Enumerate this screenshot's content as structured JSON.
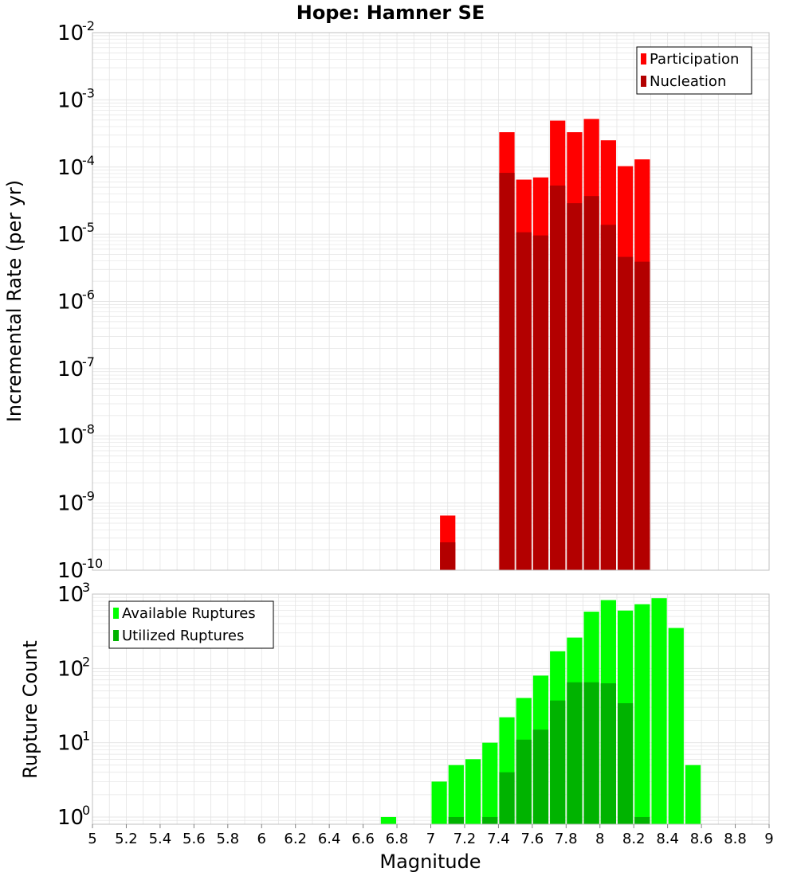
{
  "chart_data": [
    {
      "type": "bar",
      "title": "Hope: Hamner SE",
      "xlabel": "",
      "ylabel": "Incremental Rate (per yr)",
      "xlim": [
        5,
        9
      ],
      "ylim": [
        1e-10,
        0.01
      ],
      "yscale": "log",
      "grid": true,
      "legend_position": "top-right",
      "bin_width": 0.1,
      "x": [
        7.1,
        7.45,
        7.55,
        7.65,
        7.75,
        7.85,
        7.95,
        8.05,
        8.15,
        8.25
      ],
      "series": [
        {
          "name": "Participation",
          "color": "#ff0000",
          "values": [
            6.5e-10,
            0.00033,
            6.5e-05,
            7e-05,
            0.00049,
            0.00033,
            0.00052,
            0.00025,
            0.000103,
            0.00013
          ]
        },
        {
          "name": "Nucleation",
          "color": "#b30000",
          "values": [
            2.6e-10,
            8.2e-05,
            1.07e-05,
            9.6e-06,
            5.3e-05,
            2.9e-05,
            3.7e-05,
            1.38e-05,
            4.6e-06,
            3.9e-06
          ]
        }
      ]
    },
    {
      "type": "bar",
      "title": "",
      "xlabel": "Magnitude",
      "ylabel": "Rupture Count",
      "xlim": [
        5,
        9
      ],
      "ylim": [
        0.8,
        1000
      ],
      "yscale": "log",
      "grid": true,
      "legend_position": "top-left",
      "bin_width": 0.1,
      "x": [
        6.75,
        7.05,
        7.15,
        7.25,
        7.35,
        7.45,
        7.55,
        7.65,
        7.75,
        7.85,
        7.95,
        8.05,
        8.15,
        8.25,
        8.35,
        8.45,
        8.55
      ],
      "series": [
        {
          "name": "Available Ruptures",
          "color": "#00ff00",
          "values": [
            1,
            3,
            5,
            6,
            10,
            22,
            40,
            80,
            170,
            260,
            580,
            830,
            600,
            730,
            880,
            350,
            5
          ]
        },
        {
          "name": "Utilized Ruptures",
          "color": "#00b300",
          "values": [
            0,
            0,
            1,
            0,
            1,
            4,
            11,
            15,
            37,
            65,
            65,
            63,
            34,
            1,
            0,
            0,
            0
          ]
        }
      ],
      "x_ticks": [
        "5",
        "5.2",
        "5.4",
        "5.6",
        "5.8",
        "6",
        "6.2",
        "6.4",
        "6.6",
        "6.8",
        "7",
        "7.2",
        "7.4",
        "7.6",
        "7.8",
        "8",
        "8.2",
        "8.4",
        "8.6",
        "8.8",
        "9"
      ]
    }
  ],
  "colors": {
    "participation": "#ff0000",
    "nucleation": "#b30000",
    "available": "#00ff00",
    "utilized": "#00b300",
    "grid": "#e4e4e4",
    "frame": "#c0c0c0"
  }
}
